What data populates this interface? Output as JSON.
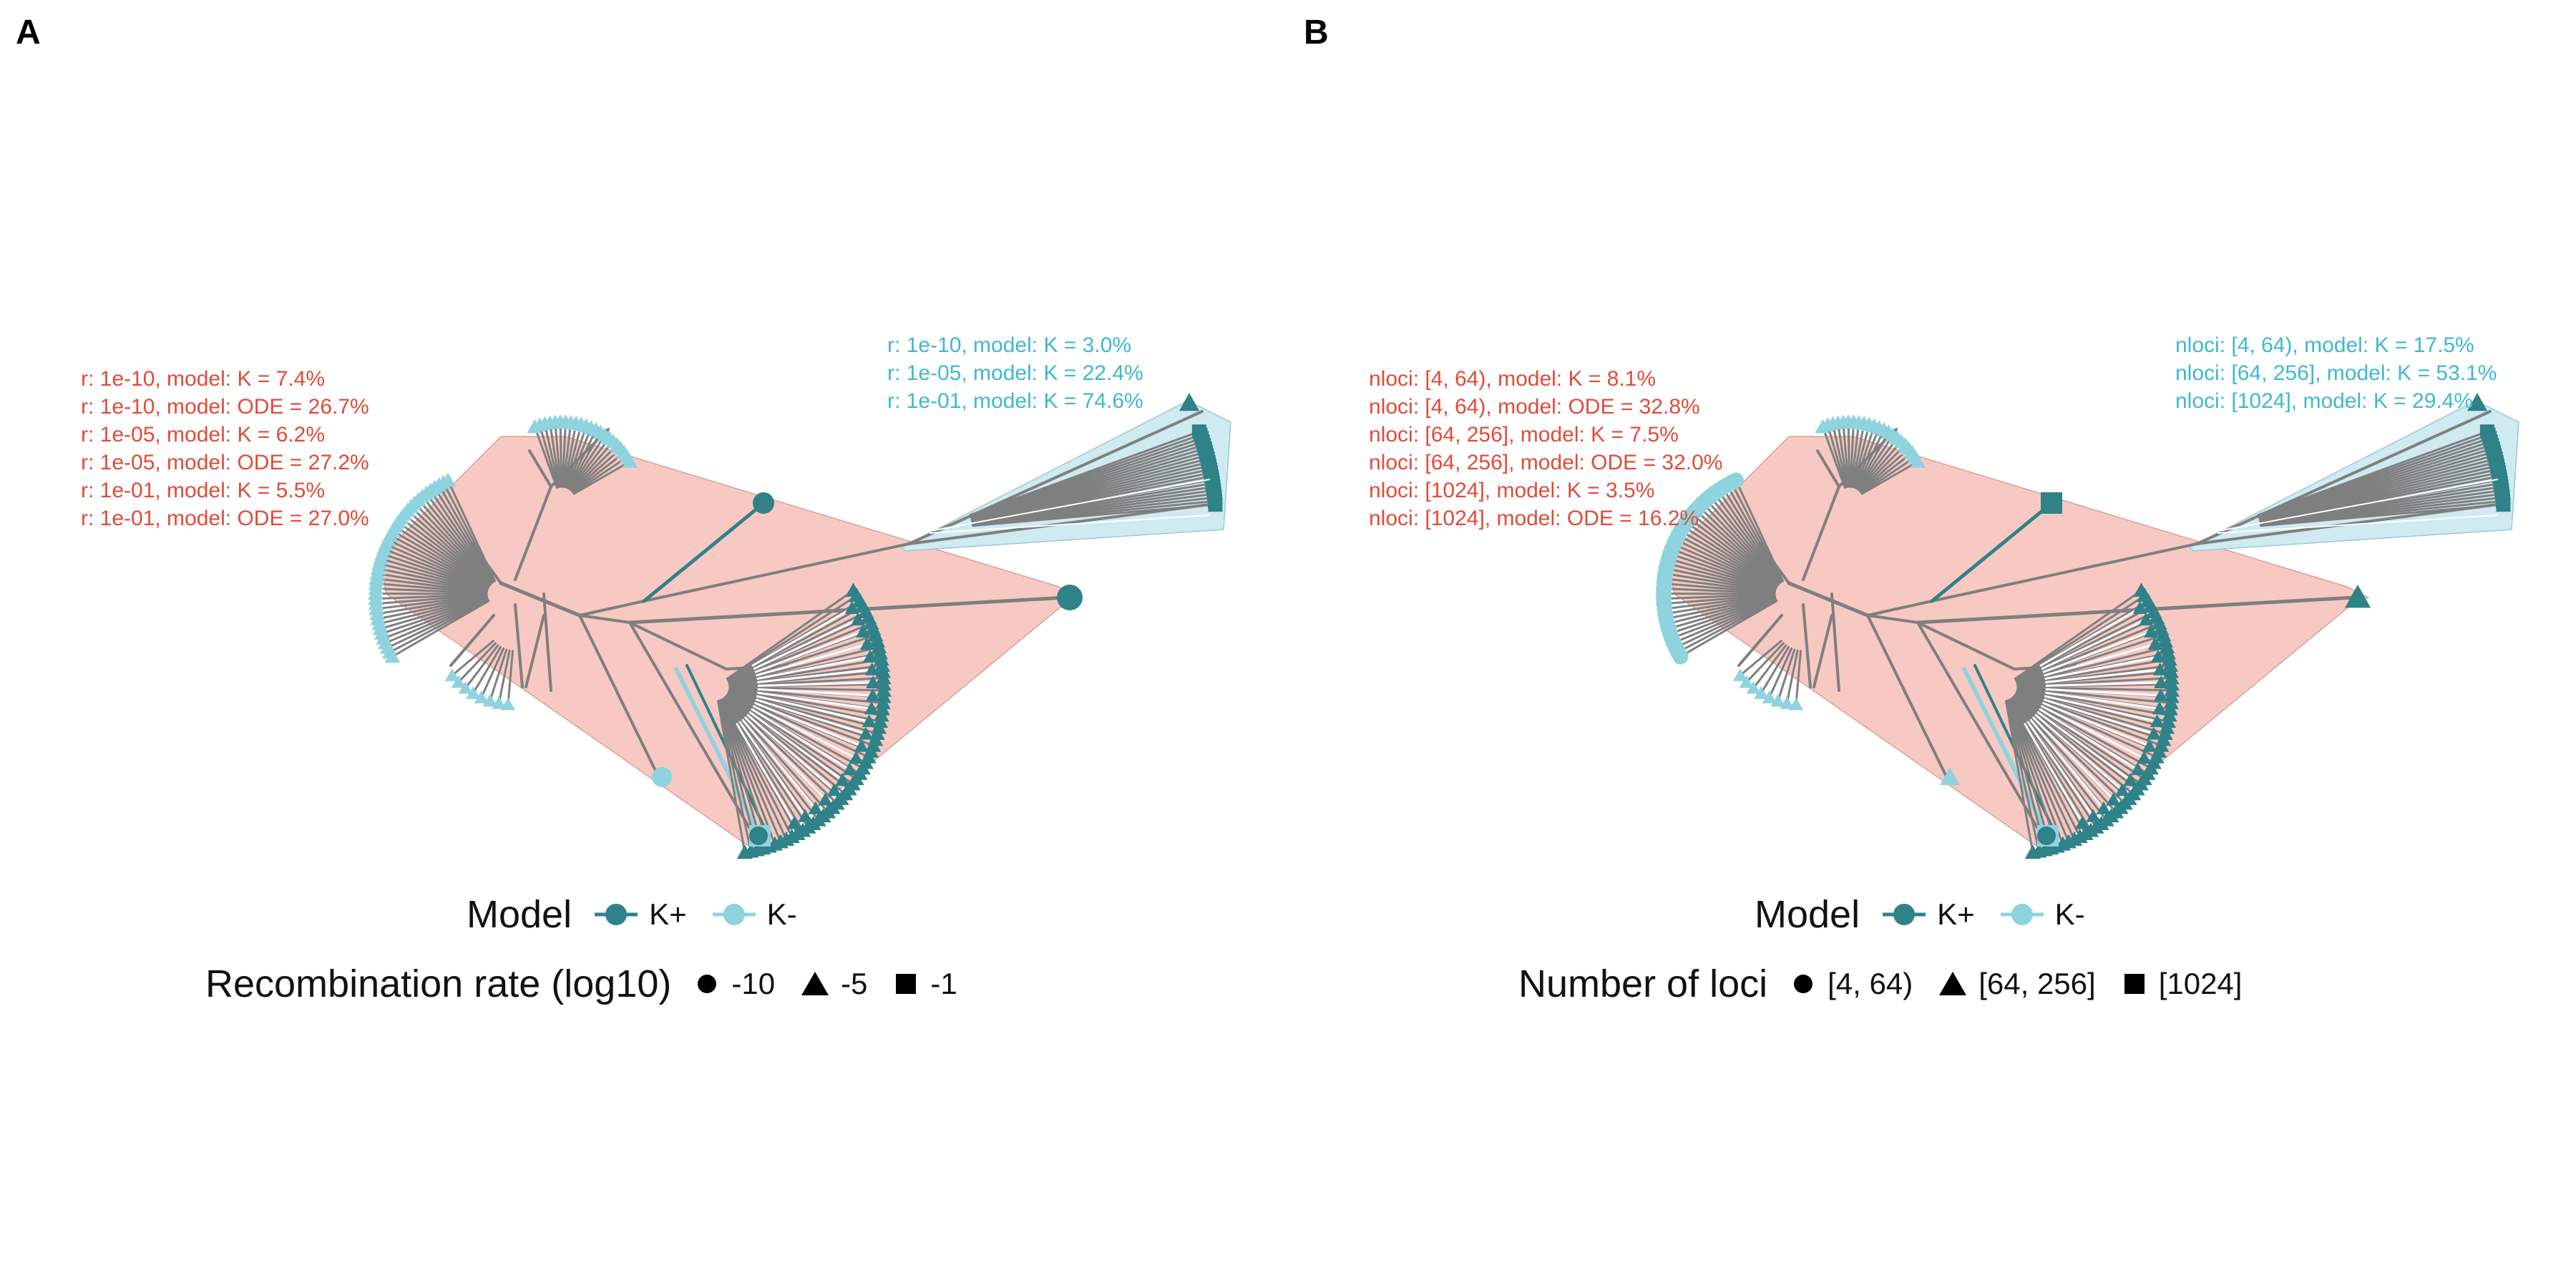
{
  "colors": {
    "k_plus": "#2e8288",
    "k_minus": "#8fd3de",
    "branch": "#7f7f7f",
    "hull_red": "#f7c9c2",
    "hull_blue": "#cfeaf1",
    "ann_red": "#e04b39",
    "ann_blue": "#3fb8cf"
  },
  "panels": [
    {
      "letter": "A",
      "annotations_red": [
        "r: 1e-10, model: K = 7.4%",
        "r: 1e-10, model: ODE = 26.7%",
        "r: 1e-05, model: K = 6.2%",
        "r: 1e-05, model: ODE = 27.2%",
        "r: 1e-01, model: K = 5.5%",
        "r: 1e-01, model: ODE = 27.0%"
      ],
      "annotations_blue": [
        "r: 1e-10, model: K = 3.0%",
        "r: 1e-05, model: K = 22.4%",
        "r: 1e-01, model: K = 74.6%"
      ],
      "legend_model": {
        "title": "Model",
        "items": [
          "K+",
          "K-"
        ]
      },
      "legend_shape": {
        "title": "Recombination rate (log10)",
        "items": [
          {
            "shape": "circle",
            "label": "-10"
          },
          {
            "shape": "triangle",
            "label": "-5"
          },
          {
            "shape": "square",
            "label": "-1"
          }
        ]
      }
    },
    {
      "letter": "B",
      "annotations_red": [
        "nloci: [4, 64), model: K = 8.1%",
        "nloci: [4, 64), model: ODE = 32.8%",
        "nloci: [64, 256], model: K = 7.5%",
        "nloci: [64, 256], model: ODE = 32.0%",
        "nloci: [1024], model: K = 3.5%",
        "nloci: [1024], model: ODE = 16.2%"
      ],
      "annotations_blue": [
        "nloci: [4, 64), model: K = 17.5%",
        "nloci: [64, 256], model: K = 53.1%",
        "nloci: [1024], model: K = 29.4%"
      ],
      "legend_model": {
        "title": "Model",
        "items": [
          "K+",
          "K-"
        ]
      },
      "legend_shape": {
        "title": "Number of loci",
        "items": [
          {
            "shape": "circle",
            "label": "[4, 64)"
          },
          {
            "shape": "triangle",
            "label": "[64, 256]"
          },
          {
            "shape": "square",
            "label": "[1024]"
          }
        ]
      }
    }
  ]
}
